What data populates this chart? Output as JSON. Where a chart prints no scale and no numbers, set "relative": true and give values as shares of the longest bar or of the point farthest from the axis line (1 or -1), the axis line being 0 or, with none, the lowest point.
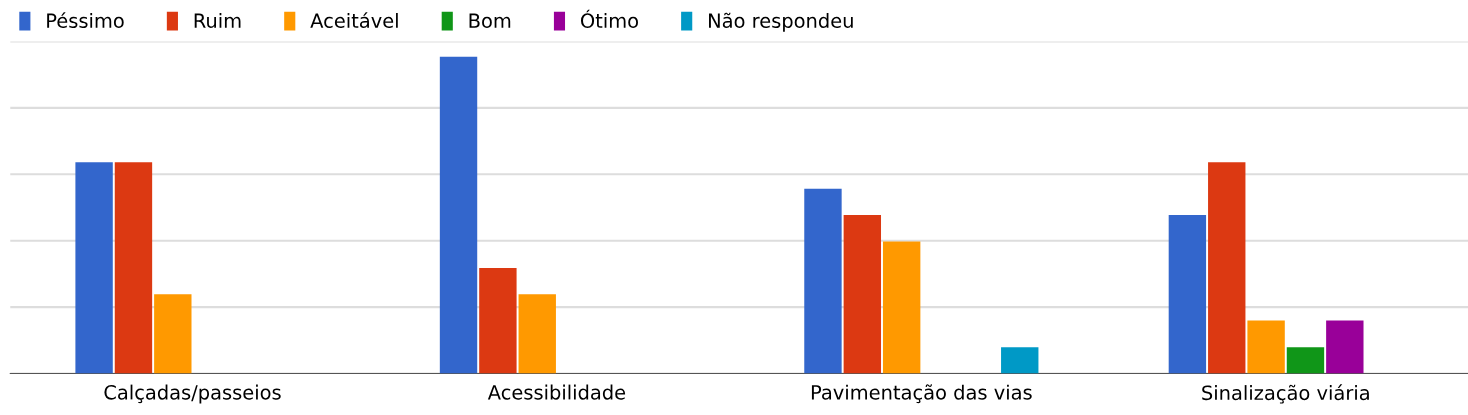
{
  "chart_data": {
    "type": "bar",
    "relative": true,
    "grid": "y",
    "legend": "top left",
    "categories": [
      "Calçadas/passeios",
      "Acessibilidade",
      "Pavimentação das vias",
      "Sinalização viária"
    ],
    "series": [
      {
        "name": "Péssimo",
        "color": "#3366cc",
        "values": [
          0.667,
          1,
          0.583,
          0.5
        ]
      },
      {
        "name": "Ruim",
        "color": "#dc3912",
        "values": [
          0.667,
          0.333,
          0.5,
          0.667
        ]
      },
      {
        "name": "Aceitável",
        "color": "#ff9900",
        "values": [
          0.25,
          0.25,
          0.417,
          0.167
        ]
      },
      {
        "name": "Bom",
        "color": "#109618",
        "values": [
          0,
          0,
          0,
          0.083
        ]
      },
      {
        "name": "Ótimo",
        "color": "#990099",
        "values": [
          0,
          0,
          0,
          0.167
        ]
      },
      {
        "name": "Não respondeu",
        "color": "#0099c6",
        "values": [
          0,
          0,
          0.083,
          0
        ]
      }
    ]
  }
}
